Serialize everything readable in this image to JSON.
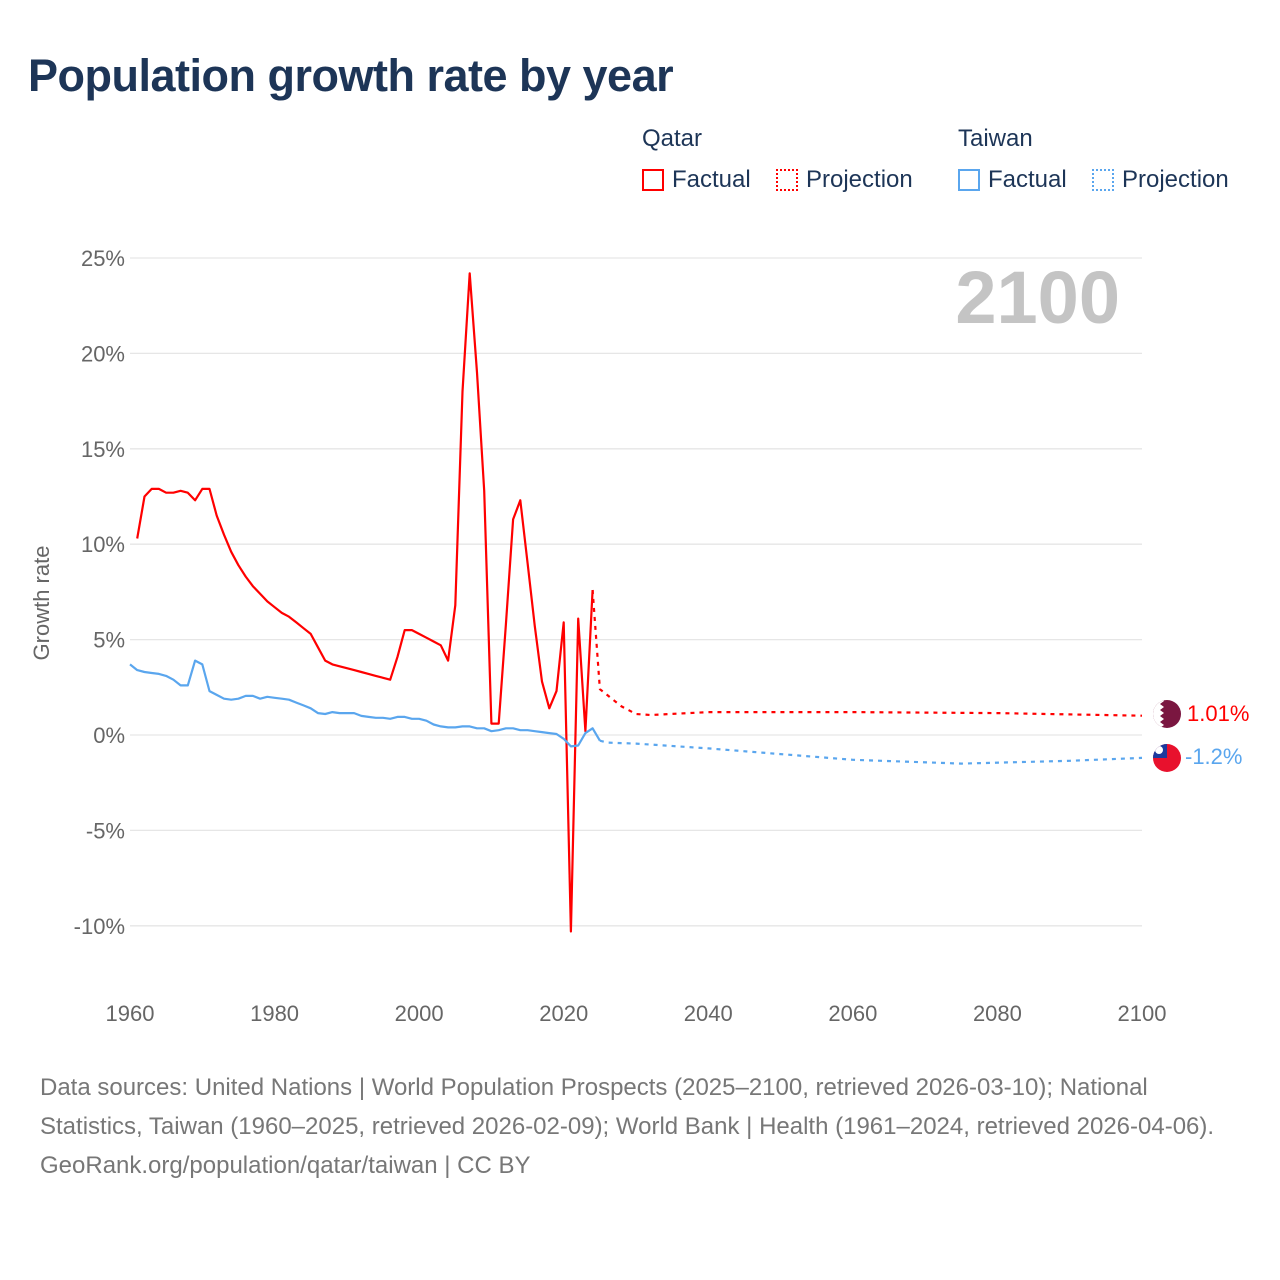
{
  "title": "Population growth rate by year",
  "legend": {
    "groups": [
      {
        "name": "Qatar",
        "factual": "Factual",
        "projection": "Projection",
        "color": "#ff0000"
      },
      {
        "name": "Taiwan",
        "factual": "Factual",
        "projection": "Projection",
        "color": "#5aa6ee"
      }
    ]
  },
  "current_year": "2100",
  "end_labels": {
    "qatar": "1.01%",
    "taiwan": "-1.2%"
  },
  "chart_data": {
    "type": "line",
    "title": "Population growth rate by year",
    "xlabel": "",
    "ylabel": "Growth rate",
    "xlim": [
      1960,
      2100
    ],
    "ylim": [
      -10,
      25
    ],
    "x_ticks": [
      "1960",
      "1980",
      "2000",
      "2020",
      "2040",
      "2060",
      "2080",
      "2100"
    ],
    "x_tick_values": [
      1960,
      1980,
      2000,
      2020,
      2040,
      2060,
      2080,
      2100
    ],
    "y_ticks": [
      "25%",
      "20%",
      "15%",
      "10%",
      "5%",
      "0%",
      "-5%",
      "-10%"
    ],
    "y_tick_values": [
      25,
      20,
      15,
      10,
      5,
      0,
      -5,
      -10
    ],
    "grid": true,
    "series": [
      {
        "name": "Qatar Factual",
        "color": "#ff0000",
        "dashed": false,
        "x": [
          1961,
          1962,
          1963,
          1964,
          1965,
          1966,
          1967,
          1968,
          1969,
          1970,
          1971,
          1972,
          1973,
          1974,
          1975,
          1976,
          1977,
          1978,
          1979,
          1980,
          1981,
          1982,
          1983,
          1984,
          1985,
          1986,
          1987,
          1988,
          1989,
          1990,
          1991,
          1992,
          1993,
          1994,
          1995,
          1996,
          1997,
          1998,
          1999,
          2000,
          2001,
          2002,
          2003,
          2004,
          2005,
          2006,
          2007,
          2008,
          2009,
          2010,
          2011,
          2012,
          2013,
          2014,
          2015,
          2016,
          2017,
          2018,
          2019,
          2020,
          2021,
          2022,
          2023,
          2024
        ],
        "y": [
          10.3,
          12.5,
          12.9,
          12.9,
          12.7,
          12.7,
          12.8,
          12.7,
          12.3,
          12.9,
          12.9,
          11.5,
          10.5,
          9.6,
          8.9,
          8.3,
          7.8,
          7.4,
          7.0,
          6.7,
          6.4,
          6.2,
          5.9,
          5.6,
          5.3,
          4.6,
          3.9,
          3.7,
          3.6,
          3.5,
          3.4,
          3.3,
          3.2,
          3.1,
          3.0,
          2.9,
          4.1,
          5.5,
          5.5,
          5.3,
          5.1,
          4.9,
          4.7,
          3.9,
          6.8,
          18.0,
          24.2,
          19.0,
          12.8,
          0.6,
          0.6,
          5.8,
          11.3,
          12.3,
          9.0,
          5.7,
          2.8,
          1.4,
          2.3,
          5.9,
          -10.3,
          6.1,
          0.2,
          7.6
        ]
      },
      {
        "name": "Qatar Projection",
        "color": "#ff0000",
        "dashed": true,
        "x": [
          2024,
          2025,
          2026,
          2027,
          2028,
          2029,
          2030,
          2032,
          2040,
          2060,
          2080,
          2100
        ],
        "y": [
          7.6,
          2.4,
          2.1,
          1.8,
          1.5,
          1.3,
          1.1,
          1.05,
          1.2,
          1.2,
          1.15,
          1.01
        ]
      },
      {
        "name": "Taiwan Factual",
        "color": "#5aa6ee",
        "dashed": false,
        "x": [
          1960,
          1961,
          1962,
          1963,
          1964,
          1965,
          1966,
          1967,
          1968,
          1969,
          1970,
          1971,
          1972,
          1973,
          1974,
          1975,
          1976,
          1977,
          1978,
          1979,
          1980,
          1981,
          1982,
          1983,
          1984,
          1985,
          1986,
          1987,
          1988,
          1989,
          1990,
          1991,
          1992,
          1993,
          1994,
          1995,
          1996,
          1997,
          1998,
          1999,
          2000,
          2001,
          2002,
          2003,
          2004,
          2005,
          2006,
          2007,
          2008,
          2009,
          2010,
          2011,
          2012,
          2013,
          2014,
          2015,
          2016,
          2017,
          2018,
          2019,
          2020,
          2021,
          2022,
          2023,
          2024,
          2025
        ],
        "y": [
          3.7,
          3.4,
          3.3,
          3.25,
          3.2,
          3.1,
          2.9,
          2.6,
          2.6,
          3.9,
          3.7,
          2.3,
          2.1,
          1.9,
          1.85,
          1.9,
          2.05,
          2.05,
          1.9,
          2.0,
          1.95,
          1.9,
          1.85,
          1.7,
          1.55,
          1.4,
          1.15,
          1.1,
          1.2,
          1.15,
          1.15,
          1.15,
          1.0,
          0.95,
          0.9,
          0.9,
          0.85,
          0.95,
          0.95,
          0.85,
          0.85,
          0.75,
          0.55,
          0.45,
          0.4,
          0.4,
          0.45,
          0.45,
          0.35,
          0.35,
          0.2,
          0.25,
          0.35,
          0.35,
          0.25,
          0.25,
          0.2,
          0.15,
          0.1,
          0.05,
          -0.2,
          -0.6,
          -0.55,
          0.1,
          0.35,
          -0.3
        ]
      },
      {
        "name": "Taiwan Projection",
        "color": "#5aa6ee",
        "dashed": true,
        "x": [
          2025,
          2026,
          2030,
          2040,
          2050,
          2060,
          2075,
          2090,
          2100
        ],
        "y": [
          -0.3,
          -0.4,
          -0.45,
          -0.7,
          -1.0,
          -1.3,
          -1.5,
          -1.35,
          -1.2
        ]
      }
    ]
  },
  "footer": {
    "sources": "Data sources: United Nations | World Population Prospects (2025–2100, retrieved 2026-03-10); National Statistics, Taiwan (1960–2025, retrieved 2026-02-09); World Bank | Health (1961–2024, retrieved 2026-04-06).",
    "credit": "GeoRank.org/population/qatar/taiwan | CC BY"
  }
}
